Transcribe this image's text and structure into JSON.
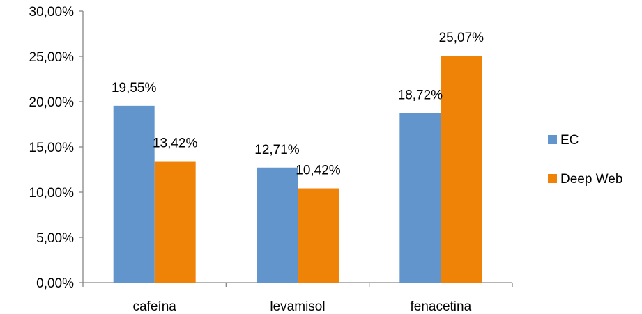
{
  "chart_data": {
    "type": "bar",
    "categories": [
      "cafeína",
      "levamisol",
      "fenacetina"
    ],
    "series": [
      {
        "name": "EC",
        "values": [
          19.55,
          12.71,
          18.72
        ],
        "labels": [
          "19,55%",
          "12,71%",
          "18,72%"
        ],
        "color": "#6195CB"
      },
      {
        "name": "Deep Web",
        "values": [
          13.42,
          10.42,
          25.07
        ],
        "labels": [
          "13,42%",
          "10,42%",
          "25,07%"
        ],
        "color": "#EF8307"
      }
    ],
    "ylim": [
      0,
      30
    ],
    "yticks": [
      0,
      5,
      10,
      15,
      20,
      25,
      30
    ],
    "ytick_labels": [
      "0,00%",
      "5,00%",
      "10,00%",
      "15,00%",
      "20,00%",
      "25,00%",
      "30,00%"
    ],
    "title": "",
    "xlabel": "",
    "ylabel": "",
    "grid": false,
    "legend_position": "right"
  }
}
